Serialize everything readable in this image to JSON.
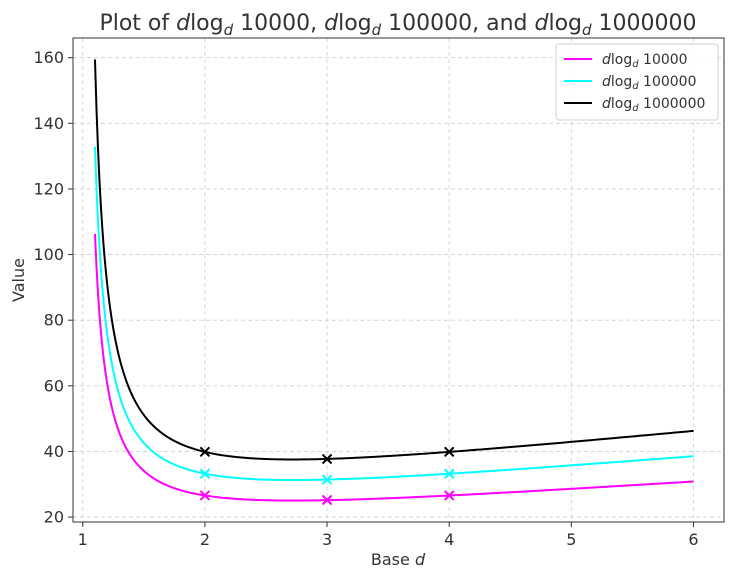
{
  "chart_data": {
    "type": "line",
    "title": {
      "parts": [
        "Plot of ",
        "d",
        "log",
        "d",
        " 10000, ",
        "d",
        "log",
        "d",
        " 100000, and ",
        "d",
        "log",
        "d",
        " 1000000"
      ]
    },
    "xlabel": {
      "text": "Base ",
      "var": "d"
    },
    "ylabel": "Value",
    "xlim": [
      0.92,
      6.25
    ],
    "ylim": [
      18.5,
      166
    ],
    "xticks": [
      1,
      2,
      3,
      4,
      5,
      6
    ],
    "yticks": [
      20,
      40,
      60,
      80,
      100,
      120,
      140,
      160
    ],
    "grid": true,
    "legend_position": "top-right",
    "series": [
      {
        "name": "dlog_d 10000",
        "legend": {
          "var": "d",
          "fn": "log",
          "sub": "d",
          "arg": " 10000"
        },
        "color": "#ff00ff",
        "N": 10000,
        "x_range": [
          1.1,
          6.0
        ],
        "markers_x": [
          2,
          3,
          4
        ],
        "markers_y": [
          26.6,
          25.2,
          26.6
        ]
      },
      {
        "name": "dlog_d 100000",
        "legend": {
          "var": "d",
          "fn": "log",
          "sub": "d",
          "arg": " 100000"
        },
        "color": "#00ffff",
        "N": 100000,
        "x_range": [
          1.1,
          6.0
        ],
        "markers_x": [
          2,
          3,
          4
        ],
        "markers_y": [
          33.2,
          31.4,
          33.2
        ]
      },
      {
        "name": "dlog_d 1000000",
        "legend": {
          "var": "d",
          "fn": "log",
          "sub": "d",
          "arg": " 1000000"
        },
        "color": "#000000",
        "N": 1000000,
        "x_range": [
          1.1,
          6.0
        ],
        "markers_x": [
          2,
          3,
          4
        ],
        "markers_y": [
          39.9,
          37.7,
          39.9
        ]
      }
    ]
  }
}
